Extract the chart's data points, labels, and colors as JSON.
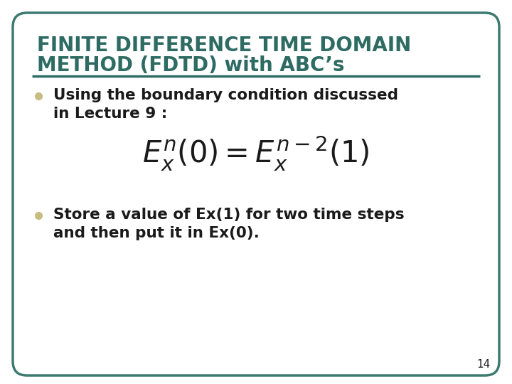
{
  "title_line1": "FINITE DIFFERENCE TIME DOMAIN",
  "title_line2": "METHOD (FDTD) with ABC’s",
  "title_color": "#2d6b63",
  "background_color": "#ffffff",
  "border_color": "#3d7a72",
  "bullet_color": "#c8bc82",
  "text_color": "#1a1a1a",
  "bullet1_line1": "Using the boundary condition discussed",
  "bullet1_line2": "in Lecture 9 :",
  "equation": "$E_x^{n}(0) = E_x^{n-2}(1)$",
  "bullet2_line1": "Store a value of Ex(1) for two time steps",
  "bullet2_line2": "and then put it in Ex(0).",
  "page_number": "14",
  "figsize": [
    7.2,
    5.4
  ],
  "dpi": 100
}
